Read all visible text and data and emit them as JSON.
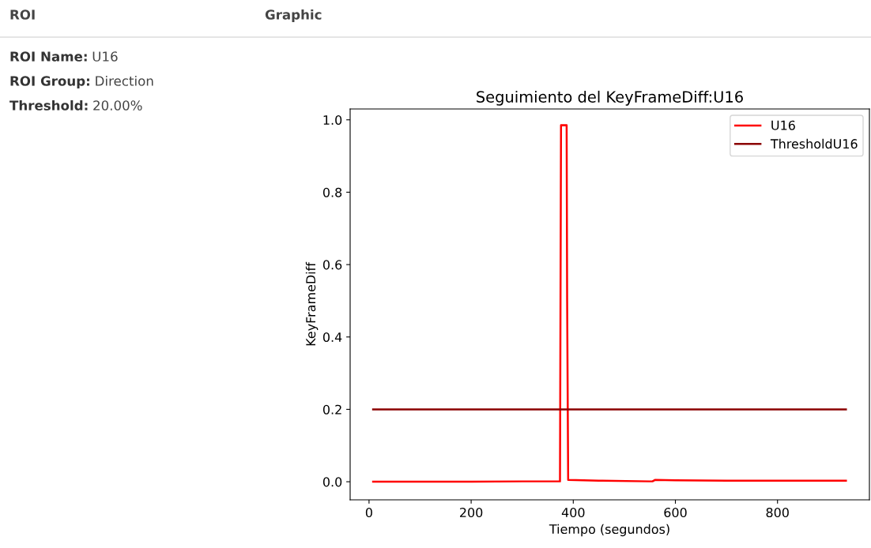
{
  "chart_data": {
    "type": "line",
    "title": "Seguimiento del KeyFrameDiff:U16",
    "xlabel": "Tiempo (segundos)",
    "ylabel": "KeyFrameDiff",
    "annotations": [
      "ROI",
      "Graphic",
      "ROI Name:",
      "U16",
      "ROI Group:",
      "Direction",
      "Threshold:",
      "20.00%"
    ],
    "series": [
      {
        "name": "U16",
        "color": "#ff0000",
        "x": [
          8,
          100,
          200,
          300,
          374,
          375,
          376,
          387,
          388,
          390,
          450,
          550,
          555,
          560,
          600,
          700,
          800,
          934
        ],
        "values": [
          0.0,
          0.0,
          0.0,
          0.001,
          0.001,
          0.5,
          0.985,
          0.985,
          0.5,
          0.005,
          0.003,
          0.001,
          0.001,
          0.005,
          0.004,
          0.003,
          0.003,
          0.003
        ]
      },
      {
        "name": "ThresholdU16",
        "color": "#8b0000",
        "x": [
          8,
          934
        ],
        "values": [
          0.2,
          0.2
        ]
      }
    ],
    "xlim": [
      -37,
      980
    ],
    "ylim": [
      -0.05,
      1.03
    ],
    "xticks": [
      0,
      200,
      400,
      600,
      800
    ],
    "yticks": [
      {
        "value": 0,
        "label": "0.0"
      },
      0.2,
      0.4,
      0.6,
      0.8,
      {
        "value": 1,
        "label": "1.0"
      }
    ],
    "legend": "top right",
    "grid": false,
    "marker": "none",
    "line_style": "solid"
  }
}
